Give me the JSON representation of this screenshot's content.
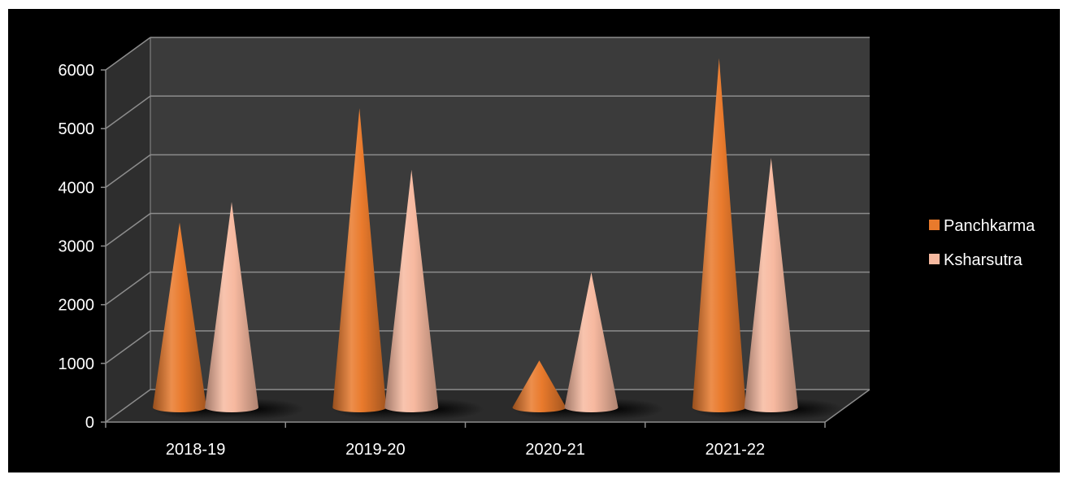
{
  "chart_data": {
    "type": "bar",
    "style": "3d-cone",
    "categories": [
      "2018-19",
      "2019-20",
      "2020-21",
      "2021-22"
    ],
    "series": [
      {
        "name": "Panchkarma",
        "values": [
          3150,
          5100,
          800,
          5950
        ],
        "color": "#e97a2c"
      },
      {
        "name": "Ksharsutra",
        "values": [
          3500,
          4050,
          2300,
          4250
        ],
        "color": "#f7b9a0"
      }
    ],
    "ylim": [
      0,
      6000
    ],
    "yticks": [
      0,
      1000,
      2000,
      3000,
      4000,
      5000,
      6000
    ],
    "ytick_labels": [
      "0",
      "1000",
      "2000",
      "3000",
      "4000",
      "5000",
      "6000"
    ],
    "title": "",
    "xlabel": "",
    "ylabel": "",
    "grid": true,
    "legend_position": "right",
    "background": "#000000",
    "plot_wall_color": "#3b3b3b",
    "side_wall_color": "#2e2e2e",
    "floor_color": "#2b2b2b",
    "gridline_color": "#8c8c8c"
  }
}
